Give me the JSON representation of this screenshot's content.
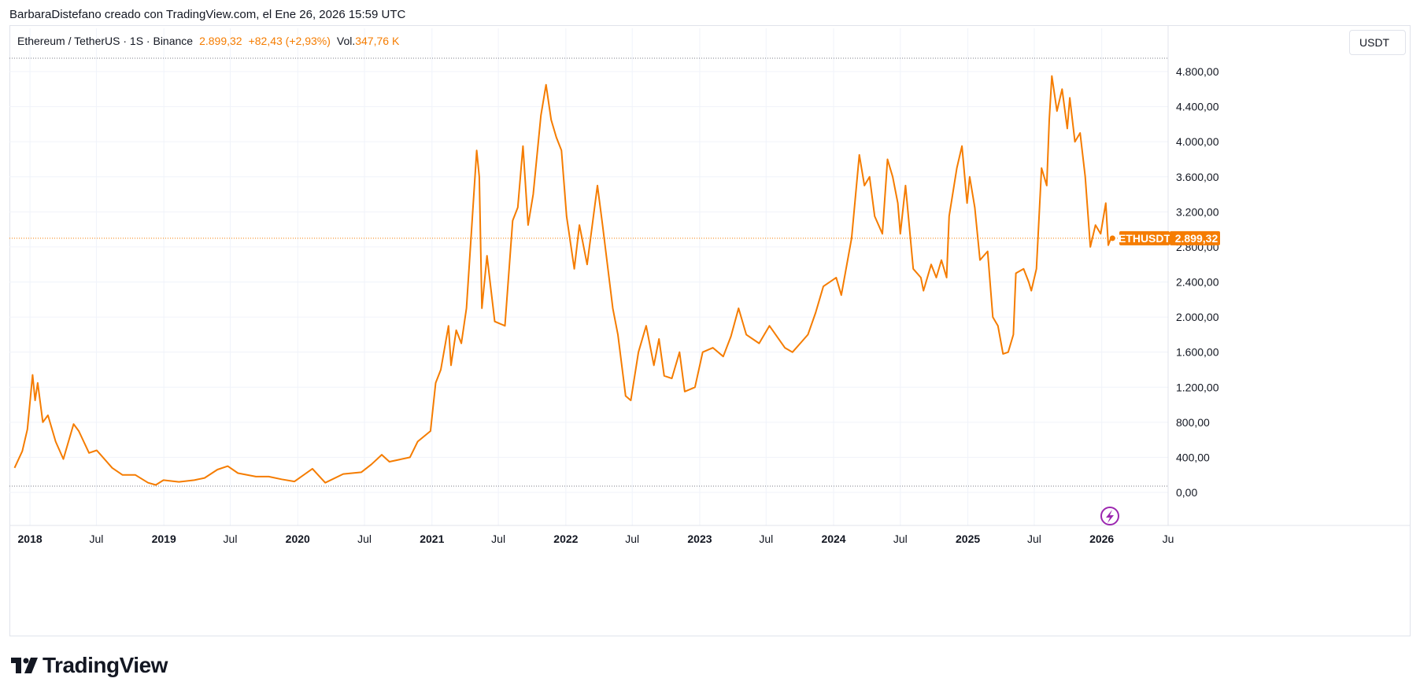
{
  "caption": "BarbaraDistefano creado con TradingView.com, el Ene 26, 2026 15:59 UTC",
  "legend": {
    "symbol": "Ethereum / TetherUS · 1S · Binance",
    "price": "2.899,32",
    "change": "+82,43 (+2,93%)",
    "volume_label": "Vol.",
    "volume_value": "347,76 K"
  },
  "unit_button": "USDT",
  "price_tag": {
    "symbol": "ETHUSDT",
    "value": "2.899,32"
  },
  "logo": {
    "text": "TradingView",
    "icon": "tradingview-logo-icon"
  },
  "indicator_icon": "lightning-icon",
  "colors": {
    "line": "#f57c00",
    "grid": "#f0f3fa",
    "tag": "#f57c00",
    "indicator": "#9c27b0"
  },
  "chart_data": {
    "type": "line",
    "series": [
      {
        "name": "ETHUSDT",
        "points": [
          [
            "2017-11-20",
            280
          ],
          [
            "2017-12-11",
            470
          ],
          [
            "2017-12-25",
            720
          ],
          [
            "2018-01-08",
            1340
          ],
          [
            "2018-01-15",
            1050
          ],
          [
            "2018-01-22",
            1250
          ],
          [
            "2018-02-05",
            800
          ],
          [
            "2018-02-19",
            880
          ],
          [
            "2018-03-12",
            580
          ],
          [
            "2018-04-02",
            380
          ],
          [
            "2018-04-30",
            780
          ],
          [
            "2018-05-14",
            700
          ],
          [
            "2018-06-11",
            450
          ],
          [
            "2018-07-02",
            480
          ],
          [
            "2018-08-13",
            280
          ],
          [
            "2018-09-10",
            200
          ],
          [
            "2018-10-15",
            200
          ],
          [
            "2018-11-19",
            110
          ],
          [
            "2018-12-10",
            85
          ],
          [
            "2018-12-31",
            140
          ],
          [
            "2019-02-11",
            120
          ],
          [
            "2019-03-25",
            140
          ],
          [
            "2019-04-22",
            165
          ],
          [
            "2019-05-27",
            260
          ],
          [
            "2019-06-24",
            300
          ],
          [
            "2019-07-22",
            220
          ],
          [
            "2019-09-09",
            180
          ],
          [
            "2019-10-14",
            180
          ],
          [
            "2019-11-18",
            150
          ],
          [
            "2019-12-23",
            125
          ],
          [
            "2020-02-10",
            270
          ],
          [
            "2020-03-16",
            110
          ],
          [
            "2020-05-04",
            210
          ],
          [
            "2020-06-22",
            230
          ],
          [
            "2020-07-20",
            320
          ],
          [
            "2020-08-17",
            430
          ],
          [
            "2020-09-07",
            350
          ],
          [
            "2020-11-02",
            400
          ],
          [
            "2020-11-23",
            580
          ],
          [
            "2020-12-28",
            700
          ],
          [
            "2021-01-11",
            1250
          ],
          [
            "2021-01-25",
            1400
          ],
          [
            "2021-02-15",
            1900
          ],
          [
            "2021-02-22",
            1450
          ],
          [
            "2021-03-08",
            1850
          ],
          [
            "2021-03-22",
            1700
          ],
          [
            "2021-04-05",
            2100
          ],
          [
            "2021-05-03",
            3900
          ],
          [
            "2021-05-10",
            3600
          ],
          [
            "2021-05-17",
            2100
          ],
          [
            "2021-05-31",
            2700
          ],
          [
            "2021-06-21",
            1950
          ],
          [
            "2021-07-19",
            1900
          ],
          [
            "2021-08-09",
            3100
          ],
          [
            "2021-08-23",
            3250
          ],
          [
            "2021-09-06",
            3950
          ],
          [
            "2021-09-20",
            3050
          ],
          [
            "2021-10-04",
            3400
          ],
          [
            "2021-10-25",
            4300
          ],
          [
            "2021-11-08",
            4650
          ],
          [
            "2021-11-22",
            4250
          ],
          [
            "2021-12-06",
            4050
          ],
          [
            "2021-12-20",
            3900
          ],
          [
            "2022-01-03",
            3150
          ],
          [
            "2022-01-24",
            2550
          ],
          [
            "2022-02-07",
            3050
          ],
          [
            "2022-02-28",
            2600
          ],
          [
            "2022-03-28",
            3500
          ],
          [
            "2022-04-11",
            3050
          ],
          [
            "2022-05-09",
            2100
          ],
          [
            "2022-05-23",
            1800
          ],
          [
            "2022-06-13",
            1100
          ],
          [
            "2022-06-27",
            1050
          ],
          [
            "2022-07-18",
            1600
          ],
          [
            "2022-08-08",
            1900
          ],
          [
            "2022-08-29",
            1450
          ],
          [
            "2022-09-12",
            1750
          ],
          [
            "2022-09-26",
            1330
          ],
          [
            "2022-10-17",
            1300
          ],
          [
            "2022-11-07",
            1600
          ],
          [
            "2022-11-21",
            1150
          ],
          [
            "2022-12-19",
            1200
          ],
          [
            "2023-01-09",
            1600
          ],
          [
            "2023-02-06",
            1650
          ],
          [
            "2023-03-06",
            1550
          ],
          [
            "2023-03-27",
            1780
          ],
          [
            "2023-04-17",
            2100
          ],
          [
            "2023-05-08",
            1800
          ],
          [
            "2023-06-12",
            1700
          ],
          [
            "2023-07-10",
            1900
          ],
          [
            "2023-08-21",
            1650
          ],
          [
            "2023-09-11",
            1600
          ],
          [
            "2023-10-23",
            1800
          ],
          [
            "2023-11-13",
            2050
          ],
          [
            "2023-12-04",
            2350
          ],
          [
            "2024-01-08",
            2450
          ],
          [
            "2024-01-22",
            2250
          ],
          [
            "2024-02-19",
            2900
          ],
          [
            "2024-03-11",
            3850
          ],
          [
            "2024-03-25",
            3500
          ],
          [
            "2024-04-08",
            3600
          ],
          [
            "2024-04-22",
            3150
          ],
          [
            "2024-05-13",
            2950
          ],
          [
            "2024-05-27",
            3800
          ],
          [
            "2024-06-10",
            3600
          ],
          [
            "2024-06-24",
            3300
          ],
          [
            "2024-07-01",
            2950
          ],
          [
            "2024-07-15",
            3500
          ],
          [
            "2024-08-05",
            2550
          ],
          [
            "2024-08-26",
            2450
          ],
          [
            "2024-09-02",
            2300
          ],
          [
            "2024-09-23",
            2600
          ],
          [
            "2024-10-07",
            2450
          ],
          [
            "2024-10-21",
            2650
          ],
          [
            "2024-11-04",
            2450
          ],
          [
            "2024-11-11",
            3150
          ],
          [
            "2024-12-02",
            3700
          ],
          [
            "2024-12-16",
            3950
          ],
          [
            "2024-12-30",
            3300
          ],
          [
            "2025-01-06",
            3600
          ],
          [
            "2025-01-20",
            3250
          ],
          [
            "2025-02-03",
            2650
          ],
          [
            "2025-02-24",
            2750
          ],
          [
            "2025-03-10",
            2000
          ],
          [
            "2025-03-24",
            1900
          ],
          [
            "2025-04-07",
            1580
          ],
          [
            "2025-04-21",
            1600
          ],
          [
            "2025-05-05",
            1800
          ],
          [
            "2025-05-12",
            2500
          ],
          [
            "2025-06-02",
            2550
          ],
          [
            "2025-06-16",
            2400
          ],
          [
            "2025-06-23",
            2300
          ],
          [
            "2025-07-07",
            2550
          ],
          [
            "2025-07-21",
            3700
          ],
          [
            "2025-08-04",
            3500
          ],
          [
            "2025-08-11",
            4250
          ],
          [
            "2025-08-18",
            4750
          ],
          [
            "2025-09-01",
            4350
          ],
          [
            "2025-09-15",
            4600
          ],
          [
            "2025-09-29",
            4150
          ],
          [
            "2025-10-06",
            4500
          ],
          [
            "2025-10-20",
            4000
          ],
          [
            "2025-11-03",
            4100
          ],
          [
            "2025-11-17",
            3600
          ],
          [
            "2025-12-01",
            2800
          ],
          [
            "2025-12-15",
            3050
          ],
          [
            "2025-12-29",
            2950
          ],
          [
            "2026-01-12",
            3300
          ],
          [
            "2026-01-19",
            2820
          ],
          [
            "2026-01-26",
            2899
          ]
        ]
      }
    ],
    "yticks": [
      "0,00",
      "400,00",
      "800,00",
      "1.200,00",
      "1.600,00",
      "2.000,00",
      "2.400,00",
      "2.800,00",
      "3.200,00",
      "3.600,00",
      "4.000,00",
      "4.400,00",
      "4.800,00"
    ],
    "ytick_values": [
      0,
      400,
      800,
      1200,
      1600,
      2000,
      2400,
      2800,
      3200,
      3600,
      4000,
      4400,
      4800
    ],
    "xticks": [
      {
        "label": "2018",
        "date": "2018-01-01",
        "year": true
      },
      {
        "label": "Jul",
        "date": "2018-07-01",
        "year": false
      },
      {
        "label": "2019",
        "date": "2019-01-01",
        "year": true
      },
      {
        "label": "Jul",
        "date": "2019-07-01",
        "year": false
      },
      {
        "label": "2020",
        "date": "2020-01-01",
        "year": true
      },
      {
        "label": "Jul",
        "date": "2020-07-01",
        "year": false
      },
      {
        "label": "2021",
        "date": "2021-01-01",
        "year": true
      },
      {
        "label": "Jul",
        "date": "2021-07-01",
        "year": false
      },
      {
        "label": "2022",
        "date": "2022-01-01",
        "year": true
      },
      {
        "label": "Jul",
        "date": "2022-07-01",
        "year": false
      },
      {
        "label": "2023",
        "date": "2023-01-01",
        "year": true
      },
      {
        "label": "Jul",
        "date": "2023-07-01",
        "year": false
      },
      {
        "label": "2024",
        "date": "2024-01-01",
        "year": true
      },
      {
        "label": "Jul",
        "date": "2024-07-01",
        "year": false
      },
      {
        "label": "2025",
        "date": "2025-01-01",
        "year": true
      },
      {
        "label": "Jul",
        "date": "2025-07-01",
        "year": false
      },
      {
        "label": "2026",
        "date": "2026-01-01",
        "year": true
      },
      {
        "label": "Ju",
        "date": "2026-07-01",
        "year": false
      }
    ],
    "xlim": [
      "2017-11-06",
      "2026-07-01"
    ],
    "ylim": [
      -400,
      5300
    ],
    "last_price": 2899.32,
    "grid": true
  }
}
